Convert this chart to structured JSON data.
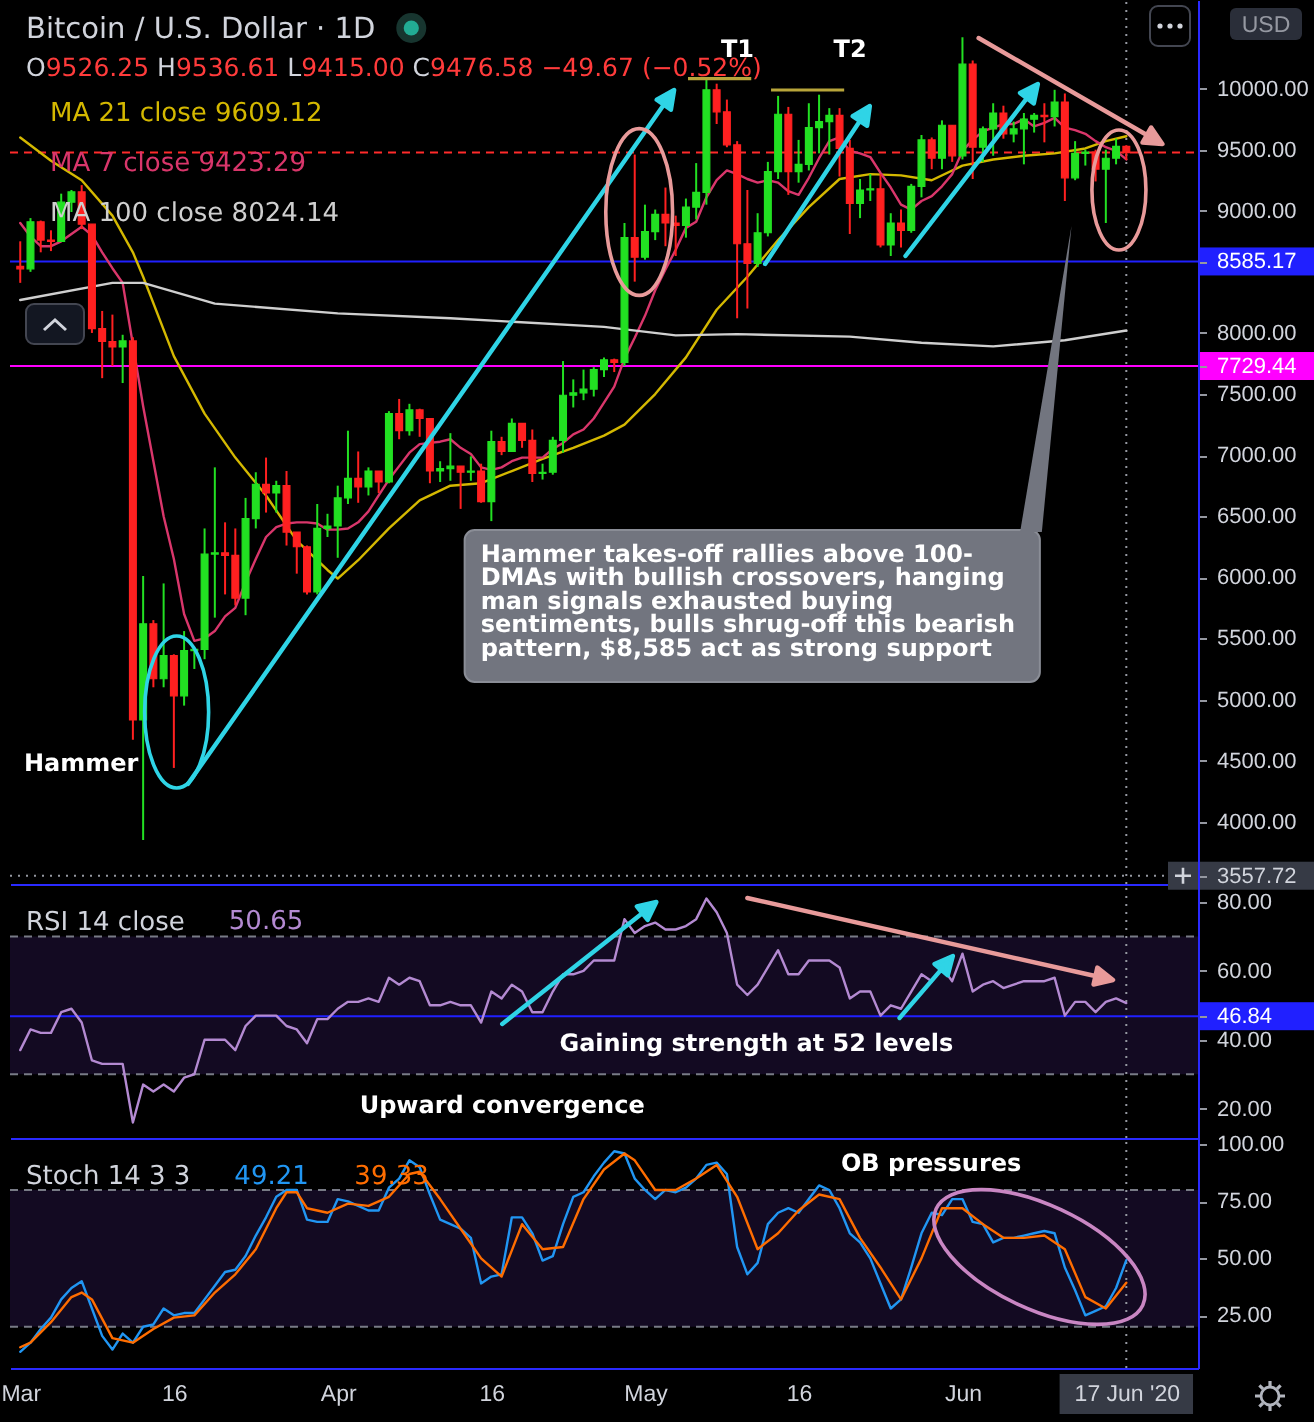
{
  "chart_data": [
    {
      "type": "candlestick",
      "title": "Bitcoin / U.S. Dollar · 1D",
      "subtitle": "O9526.25 H9536.61 L9415.00 C9476.58 −49.67 (−0.52%)",
      "ylabel": "USD",
      "x": [
        "2020-03-01",
        "2020-03-02",
        "2020-03-03",
        "2020-03-04",
        "2020-03-05",
        "2020-03-06",
        "2020-03-07",
        "2020-03-08",
        "2020-03-09",
        "2020-03-10",
        "2020-03-11",
        "2020-03-12",
        "2020-03-13",
        "2020-03-14",
        "2020-03-15",
        "2020-03-16",
        "2020-03-17",
        "2020-03-18",
        "2020-03-19",
        "2020-03-20",
        "2020-03-21",
        "2020-03-22",
        "2020-03-23",
        "2020-03-24",
        "2020-03-25",
        "2020-03-26",
        "2020-03-27",
        "2020-03-28",
        "2020-03-29",
        "2020-03-30",
        "2020-03-31",
        "2020-04-01",
        "2020-04-02",
        "2020-04-03",
        "2020-04-04",
        "2020-04-05",
        "2020-04-06",
        "2020-04-07",
        "2020-04-08",
        "2020-04-09",
        "2020-04-10",
        "2020-04-11",
        "2020-04-12",
        "2020-04-13",
        "2020-04-14",
        "2020-04-15",
        "2020-04-16",
        "2020-04-17",
        "2020-04-18",
        "2020-04-19",
        "2020-04-20",
        "2020-04-21",
        "2020-04-22",
        "2020-04-23",
        "2020-04-24",
        "2020-04-25",
        "2020-04-26",
        "2020-04-27",
        "2020-04-28",
        "2020-04-29",
        "2020-04-30",
        "2020-05-01",
        "2020-05-02",
        "2020-05-03",
        "2020-05-04",
        "2020-05-05",
        "2020-05-06",
        "2020-05-07",
        "2020-05-08",
        "2020-05-09",
        "2020-05-10",
        "2020-05-11",
        "2020-05-12",
        "2020-05-13",
        "2020-05-14",
        "2020-05-15",
        "2020-05-16",
        "2020-05-17",
        "2020-05-18",
        "2020-05-19",
        "2020-05-20",
        "2020-05-21",
        "2020-05-22",
        "2020-05-23",
        "2020-05-24",
        "2020-05-25",
        "2020-05-26",
        "2020-05-27",
        "2020-05-28",
        "2020-05-29",
        "2020-05-30",
        "2020-05-31",
        "2020-06-01",
        "2020-06-02",
        "2020-06-03",
        "2020-06-04",
        "2020-06-05",
        "2020-06-06",
        "2020-06-07",
        "2020-06-08",
        "2020-06-09",
        "2020-06-10",
        "2020-06-11",
        "2020-06-12",
        "2020-06-13",
        "2020-06-14",
        "2020-06-15",
        "2020-06-16",
        "2020-06-17"
      ],
      "ohlc": [
        [
          8545,
          8750,
          8410,
          8525
        ],
        [
          8525,
          8940,
          8500,
          8910
        ],
        [
          8910,
          8920,
          8660,
          8760
        ],
        [
          8760,
          8840,
          8670,
          8750
        ],
        [
          8750,
          9140,
          8750,
          9070
        ],
        [
          9070,
          9170,
          8990,
          9155
        ],
        [
          9155,
          9210,
          8850,
          8890
        ],
        [
          8890,
          8890,
          8000,
          8035
        ],
        [
          8035,
          8180,
          7630,
          7930
        ],
        [
          7930,
          8150,
          7730,
          7885
        ],
        [
          7885,
          7985,
          7590,
          7935
        ],
        [
          7935,
          7965,
          4670,
          4833
        ],
        [
          4833,
          6011,
          3851,
          5620
        ],
        [
          5620,
          5650,
          5100,
          5170
        ],
        [
          5170,
          5950,
          5100,
          5360
        ],
        [
          5360,
          5370,
          4440,
          5030
        ],
        [
          5030,
          5560,
          4950,
          5400
        ],
        [
          5400,
          5420,
          5250,
          5410
        ],
        [
          5410,
          6400,
          5330,
          6190
        ],
        [
          6190,
          6900,
          5670,
          6200
        ],
        [
          6200,
          6450,
          5860,
          6180
        ],
        [
          6180,
          6400,
          5770,
          5830
        ],
        [
          5830,
          6650,
          5690,
          6480
        ],
        [
          6480,
          6860,
          6400,
          6760
        ],
        [
          6760,
          6980,
          6530,
          6690
        ],
        [
          6690,
          6790,
          6530,
          6750
        ],
        [
          6750,
          6870,
          6260,
          6370
        ],
        [
          6370,
          6370,
          6030,
          6250
        ],
        [
          6250,
          6260,
          5860,
          5880
        ],
        [
          5880,
          6600,
          5860,
          6400
        ],
        [
          6400,
          6520,
          6330,
          6420
        ],
        [
          6420,
          6750,
          6160,
          6650
        ],
        [
          6650,
          7200,
          6600,
          6810
        ],
        [
          6810,
          7030,
          6610,
          6740
        ],
        [
          6740,
          6900,
          6670,
          6870
        ],
        [
          6870,
          6870,
          6690,
          6780
        ],
        [
          6780,
          7360,
          6770,
          7340
        ],
        [
          7340,
          7460,
          7130,
          7200
        ],
        [
          7200,
          7420,
          7160,
          7370
        ],
        [
          7370,
          7380,
          7150,
          7300
        ],
        [
          7300,
          7300,
          6770,
          6870
        ],
        [
          6870,
          6950,
          6780,
          6890
        ],
        [
          6890,
          7180,
          6790,
          6910
        ],
        [
          6910,
          6910,
          6560,
          6860
        ],
        [
          6860,
          6990,
          6790,
          6870
        ],
        [
          6870,
          6930,
          6610,
          6620
        ],
        [
          6620,
          7200,
          6460,
          7110
        ],
        [
          7110,
          7150,
          7000,
          7030
        ],
        [
          7030,
          7300,
          7030,
          7260
        ],
        [
          7260,
          7260,
          7060,
          7120
        ],
        [
          7120,
          7210,
          6780,
          6850
        ],
        [
          6850,
          6930,
          6800,
          6860
        ],
        [
          6860,
          7150,
          6840,
          7120
        ],
        [
          7120,
          7770,
          7020,
          7490
        ],
        [
          7490,
          7620,
          7390,
          7510
        ],
        [
          7510,
          7700,
          7450,
          7540
        ],
        [
          7540,
          7720,
          7480,
          7700
        ],
        [
          7700,
          7800,
          7640,
          7780
        ],
        [
          7780,
          7790,
          7680,
          7760
        ],
        [
          7760,
          8900,
          7730,
          8780
        ],
        [
          8780,
          9460,
          8420,
          8620
        ],
        [
          8620,
          9050,
          8600,
          8830
        ],
        [
          8830,
          9010,
          8760,
          8970
        ],
        [
          8970,
          9190,
          8710,
          8900
        ],
        [
          8900,
          8960,
          8630,
          8880
        ],
        [
          8880,
          9100,
          8780,
          9030
        ],
        [
          9030,
          9390,
          8930,
          9150
        ],
        [
          9150,
          10070,
          9050,
          9990
        ],
        [
          9990,
          10040,
          9710,
          9810
        ],
        [
          9810,
          9910,
          9520,
          9540
        ],
        [
          9540,
          9570,
          8120,
          8730
        ],
        [
          8730,
          9170,
          8200,
          8570
        ],
        [
          8570,
          8980,
          8540,
          8820
        ],
        [
          8820,
          9400,
          8790,
          9320
        ],
        [
          9320,
          9940,
          9260,
          9790
        ],
        [
          9790,
          9850,
          9130,
          9320
        ],
        [
          9320,
          9580,
          9230,
          9380
        ],
        [
          9380,
          9880,
          9330,
          9680
        ],
        [
          9680,
          9950,
          9470,
          9730
        ],
        [
          9730,
          9840,
          9460,
          9780
        ],
        [
          9780,
          9840,
          9280,
          9510
        ],
        [
          9510,
          9580,
          8810,
          9060
        ],
        [
          9060,
          9260,
          8940,
          9170
        ],
        [
          9170,
          9300,
          9080,
          9180
        ],
        [
          9180,
          9300,
          8700,
          8720
        ],
        [
          8720,
          8980,
          8630,
          8900
        ],
        [
          8900,
          9010,
          8700,
          8840
        ],
        [
          8840,
          9220,
          8820,
          9200
        ],
        [
          9200,
          9620,
          9110,
          9580
        ],
        [
          9580,
          9600,
          9340,
          9430
        ],
        [
          9430,
          9740,
          9340,
          9700
        ],
        [
          9700,
          9700,
          9400,
          9450
        ],
        [
          9450,
          10420,
          9420,
          10200
        ],
        [
          10200,
          10230,
          9260,
          9520
        ],
        [
          9520,
          9690,
          9400,
          9670
        ],
        [
          9670,
          9880,
          9450,
          9800
        ],
        [
          9800,
          9860,
          9590,
          9630
        ],
        [
          9630,
          9730,
          9560,
          9670
        ],
        [
          9670,
          9800,
          9380,
          9750
        ],
        [
          9750,
          9800,
          9640,
          9780
        ],
        [
          9780,
          9880,
          9560,
          9770
        ],
        [
          9770,
          9990,
          9690,
          9890
        ],
        [
          9890,
          9960,
          9080,
          9270
        ],
        [
          9270,
          9570,
          9250,
          9470
        ],
        [
          9470,
          9500,
          9370,
          9480
        ],
        [
          9480,
          9500,
          9240,
          9340
        ],
        [
          9340,
          9500,
          8900,
          9430
        ],
        [
          9430,
          9590,
          9380,
          9526.25
        ],
        [
          9526.25,
          9536.61,
          9415.0,
          9476.58
        ]
      ],
      "colors": [
        "#ff2020",
        "#22e022",
        "#ff2020",
        "#ff2020",
        "#22e022",
        "#22e022",
        "#ff2020",
        "#ff2020",
        "#ff2020",
        "#ff2020",
        "#22e022",
        "#ff2020",
        "#22e022",
        "#ff2020",
        "#22e022",
        "#ff2020",
        "#22e022",
        "#22e022",
        "#22e022",
        "#22e022",
        "#ff2020",
        "#ff2020",
        "#22e022",
        "#22e022",
        "#ff2020",
        "#22e022",
        "#ff2020",
        "#ff2020",
        "#ff2020",
        "#22e022",
        "#22e022",
        "#22e022",
        "#22e022",
        "#ff2020",
        "#22e022",
        "#ff2020",
        "#22e022",
        "#ff2020",
        "#22e022",
        "#ff2020",
        "#ff2020",
        "#22e022",
        "#22e022",
        "#ff2020",
        "#22e022",
        "#ff2020",
        "#22e022",
        "#ff2020",
        "#22e022",
        "#ff2020",
        "#ff2020",
        "#22e022",
        "#22e022",
        "#22e022",
        "#22e022",
        "#22e022",
        "#22e022",
        "#22e022",
        "#ff2020",
        "#22e022",
        "#ff2020",
        "#22e022",
        "#22e022",
        "#ff2020",
        "#ff2020",
        "#22e022",
        "#22e022",
        "#22e022",
        "#ff2020",
        "#ff2020",
        "#ff2020",
        "#ff2020",
        "#22e022",
        "#22e022",
        "#22e022",
        "#ff2020",
        "#22e022",
        "#22e022",
        "#22e022",
        "#22e022",
        "#ff2020",
        "#ff2020",
        "#22e022",
        "#22e022",
        "#ff2020",
        "#22e022",
        "#ff2020",
        "#22e022",
        "#22e022",
        "#ff2020",
        "#22e022",
        "#ff2020",
        "#22e022",
        "#ff2020",
        "#22e022",
        "#22e022",
        "#ff2020",
        "#22e022",
        "#22e022",
        "#22e022",
        "#ff2020",
        "#22e022",
        "#ff2020",
        "#22e022",
        "#22e022",
        "#ff2020",
        "#22e022",
        "#22e022",
        "#ff2020"
      ],
      "series": [
        {
          "type": "line",
          "name": "MA 21 close 9609.12",
          "color": "#d4b800",
          "x": [
            "2020-03-01",
            "2020-03-04",
            "2020-03-07",
            "2020-03-10",
            "2020-03-12",
            "2020-03-13",
            "2020-03-16",
            "2020-03-19",
            "2020-03-22",
            "2020-03-25",
            "2020-03-28",
            "2020-03-31",
            "2020-04-01",
            "2020-04-03",
            "2020-04-06",
            "2020-04-09",
            "2020-04-12",
            "2020-04-15",
            "2020-04-18",
            "2020-04-21",
            "2020-04-24",
            "2020-04-27",
            "2020-04-29",
            "2020-05-02",
            "2020-05-05",
            "2020-05-08",
            "2020-05-11",
            "2020-05-14",
            "2020-05-17",
            "2020-05-20",
            "2020-05-23",
            "2020-05-26",
            "2020-05-29",
            "2020-06-01",
            "2020-06-04",
            "2020-06-07",
            "2020-06-10",
            "2020-06-13",
            "2020-06-15",
            "2020-06-17"
          ],
          "values": [
            9600,
            9410,
            9250,
            8960,
            8660,
            8460,
            7810,
            7340,
            6980,
            6670,
            6300,
            6060,
            5990,
            6140,
            6400,
            6630,
            6750,
            6770,
            6870,
            6970,
            7060,
            7160,
            7250,
            7500,
            7800,
            8190,
            8460,
            8760,
            9030,
            9260,
            9300,
            9290,
            9250,
            9370,
            9420,
            9450,
            9470,
            9510,
            9570,
            9610
          ]
        },
        {
          "type": "line",
          "name": "MA 7 close 9423.29",
          "color": "#d9366b",
          "values": [
            8900,
            8790,
            8710,
            8710,
            8750,
            8810,
            8870,
            8800,
            8660,
            8530,
            8410,
            null,
            7400,
            6950,
            6500,
            6150,
            5700,
            5480,
            5500,
            5560,
            5680,
            5750,
            5960,
            6150,
            6330,
            6410,
            6440,
            6450,
            6450,
            6440,
            6390,
            6390,
            6400,
            6450,
            6540,
            6670,
            6800,
            6910,
            7020,
            7090,
            7100,
            7110,
            7130,
            7060,
            7010,
            6900,
            6880,
            6900,
            6950,
            6980,
            6980,
            6980,
            7050,
            7100,
            7170,
            7210,
            7300,
            7430,
            7560,
            7790,
            7960,
            8140,
            8350,
            8520,
            8680,
            8860,
            8910,
            9110,
            9250,
            9330,
            9300,
            9260,
            9230,
            9250,
            9230,
            9160,
            9130,
            9270,
            9430,
            9570,
            9600,
            9490,
            9470,
            9440,
            9310,
            9190,
            9050,
            9010,
            9080,
            9120,
            9200,
            9300,
            9490,
            9580,
            9650,
            9680,
            9710,
            9710,
            9750,
            9690,
            9720,
            9760,
            9680,
            9660,
            9630,
            9570,
            9520,
            9490,
            9420
          ]
        },
        {
          "type": "line",
          "name": "MA 100 close 8024.14",
          "color": "#cfcfcf",
          "x": [
            "2020-03-01",
            "2020-03-10",
            "2020-03-13",
            "2020-03-20",
            "2020-04-01",
            "2020-04-12",
            "2020-04-27",
            "2020-05-04",
            "2020-05-10",
            "2020-05-21",
            "2020-05-28",
            "2020-06-04",
            "2020-06-11",
            "2020-06-17"
          ],
          "values": [
            8270,
            8410,
            8410,
            8240,
            8160,
            8120,
            8050,
            7980,
            7990,
            7970,
            7920,
            7890,
            7940,
            8020
          ]
        }
      ],
      "xlim": [
        "2020-02-29",
        "2020-06-24"
      ],
      "ylim": [
        3490,
        10725
      ],
      "yticks": [
        3557.72,
        {
          "value": 4000,
          "label": "4000.00"
        },
        {
          "value": 4500,
          "label": "4500.00"
        },
        {
          "value": 5000,
          "label": "5000.00"
        },
        {
          "value": 5500,
          "label": "5500.00"
        },
        {
          "value": 6000,
          "label": "6000.00"
        },
        {
          "value": 6500,
          "label": "6500.00"
        },
        {
          "value": 7000,
          "label": "7000.00"
        },
        {
          "value": 7500,
          "label": "7500.00"
        },
        7729.44,
        {
          "value": 8000,
          "label": "8000.00"
        },
        8585.17,
        {
          "value": 9000,
          "label": "9000.00"
        },
        {
          "value": 9500,
          "label": "9500.00"
        },
        {
          "value": 10000,
          "label": "10000.00"
        }
      ],
      "ref_lines": [
        {
          "axis": "y",
          "value": 8585.17,
          "color": "#2020ff"
        },
        {
          "axis": "y",
          "value": 7729.44,
          "color": "#ff00ff"
        },
        {
          "axis": "y",
          "value": 9476.58,
          "color": "#ff2b2b",
          "line_style": "dashed"
        },
        {
          "axis": "y",
          "value": 3557.72,
          "color": "#9598a1",
          "line_style": "dotted"
        },
        {
          "axis": "x",
          "value": "2020-06-17",
          "color": "#9598a1",
          "line_style": "dotted"
        }
      ],
      "annotations": [
        "Hammer takes-off rallies above 100-DMAs with bullish crossovers, hanging man signals exhausted buying sentiments, bulls shrug-off this bearish pattern, $8,585 act as strong support",
        "T1",
        "T2",
        "Hammer"
      ],
      "legend": "top left",
      "tick_labels": "y"
    },
    {
      "type": "line",
      "title": "RSI 14 close",
      "x": [
        "2020-03-01",
        "2020-03-02",
        "2020-03-03",
        "2020-03-04",
        "2020-03-05",
        "2020-03-06",
        "2020-03-07",
        "2020-03-08",
        "2020-03-09",
        "2020-03-10",
        "2020-03-11",
        "2020-03-12",
        "2020-03-13",
        "2020-03-14",
        "2020-03-15",
        "2020-03-16",
        "2020-03-17",
        "2020-03-18",
        "2020-03-19",
        "2020-03-20",
        "2020-03-21",
        "2020-03-22",
        "2020-03-23",
        "2020-03-24",
        "2020-03-25",
        "2020-03-26",
        "2020-03-27",
        "2020-03-28",
        "2020-03-29",
        "2020-03-30",
        "2020-03-31",
        "2020-04-01",
        "2020-04-02",
        "2020-04-03",
        "2020-04-04",
        "2020-04-05",
        "2020-04-06",
        "2020-04-07",
        "2020-04-08",
        "2020-04-09",
        "2020-04-10",
        "2020-04-11",
        "2020-04-12",
        "2020-04-13",
        "2020-04-14",
        "2020-04-15",
        "2020-04-16",
        "2020-04-17",
        "2020-04-18",
        "2020-04-19",
        "2020-04-20",
        "2020-04-21",
        "2020-04-22",
        "2020-04-23",
        "2020-04-24",
        "2020-04-25",
        "2020-04-26",
        "2020-04-27",
        "2020-04-28",
        "2020-04-29",
        "2020-04-30",
        "2020-05-01",
        "2020-05-02",
        "2020-05-03",
        "2020-05-04",
        "2020-05-05",
        "2020-05-06",
        "2020-05-07",
        "2020-05-08",
        "2020-05-09",
        "2020-05-10",
        "2020-05-11",
        "2020-05-12",
        "2020-05-13",
        "2020-05-14",
        "2020-05-15",
        "2020-05-16",
        "2020-05-17",
        "2020-05-18",
        "2020-05-19",
        "2020-05-20",
        "2020-05-21",
        "2020-05-22",
        "2020-05-23",
        "2020-05-24",
        "2020-05-25",
        "2020-05-26",
        "2020-05-27",
        "2020-05-28",
        "2020-05-29",
        "2020-05-30",
        "2020-05-31",
        "2020-06-01",
        "2020-06-02",
        "2020-06-03",
        "2020-06-04",
        "2020-06-05",
        "2020-06-06",
        "2020-06-07",
        "2020-06-08",
        "2020-06-09",
        "2020-06-10",
        "2020-06-11",
        "2020-06-12",
        "2020-06-13",
        "2020-06-14",
        "2020-06-15",
        "2020-06-16",
        "2020-06-17"
      ],
      "series": [
        {
          "name": "50.65",
          "color": "#b48ad2",
          "values": [
            37,
            43,
            42,
            42,
            48,
            49,
            45,
            34,
            33,
            33,
            33,
            16,
            27,
            25,
            27,
            25,
            29,
            30,
            40,
            40,
            40,
            37,
            44,
            47,
            47,
            47,
            44,
            43,
            39,
            46,
            46,
            49,
            51,
            51,
            52,
            51,
            58,
            56,
            58,
            57,
            50,
            50,
            51,
            50,
            50,
            45,
            54,
            52,
            56,
            54,
            48,
            48,
            54,
            59,
            59,
            60,
            63,
            63,
            63,
            75,
            71,
            73,
            74,
            72,
            72,
            73,
            75,
            81,
            77,
            71,
            56,
            53,
            56,
            61,
            66,
            59,
            59,
            63,
            63,
            63,
            61,
            52,
            54,
            54,
            47,
            50,
            49,
            54,
            59,
            57,
            61,
            57,
            65,
            54,
            56,
            57,
            55,
            56,
            57,
            57,
            57,
            58,
            47,
            51,
            51,
            48,
            51,
            52,
            50.65
          ]
        }
      ],
      "xlim": [
        "2020-02-29",
        "2020-06-24"
      ],
      "ylim": [
        11.5,
        85.2
      ],
      "yticks": [
        {
          "value": 20,
          "label": "20.00"
        },
        {
          "value": 40,
          "label": "40.00"
        },
        46.84,
        {
          "value": 60,
          "label": "60.00"
        },
        {
          "value": 80,
          "label": "80.00"
        }
      ],
      "bands": [
        {
          "axis": "y",
          "from": 30,
          "to": 70,
          "color": "#130a22"
        }
      ],
      "ref_lines": [
        {
          "axis": "y",
          "value": 70,
          "color": "#787b86",
          "line_style": "dashed"
        },
        {
          "axis": "y",
          "value": 30,
          "color": "#787b86",
          "line_style": "dashed"
        },
        {
          "axis": "y",
          "value": 46.84,
          "color": "#2020ff"
        },
        {
          "axis": "x",
          "value": "2020-06-17",
          "color": "#9598a1",
          "line_style": "dotted"
        }
      ],
      "annotations": [
        "Gaining strength at 52 levels",
        "Upward convergence"
      ],
      "legend": "top left",
      "tick_labels": "y"
    },
    {
      "type": "line",
      "title": "Stoch 14 3 3",
      "x": [
        "2020-03-01",
        "2020-03-02",
        "2020-03-03",
        "2020-03-04",
        "2020-03-05",
        "2020-03-06",
        "2020-03-07",
        "2020-03-08",
        "2020-03-09",
        "2020-03-10",
        "2020-03-11",
        "2020-03-12",
        "2020-03-13",
        "2020-03-14",
        "2020-03-15",
        "2020-03-16",
        "2020-03-17",
        "2020-03-18",
        "2020-03-19",
        "2020-03-20",
        "2020-03-21",
        "2020-03-22",
        "2020-03-23",
        "2020-03-24",
        "2020-03-25",
        "2020-03-26",
        "2020-03-27",
        "2020-03-28",
        "2020-03-29",
        "2020-03-30",
        "2020-03-31",
        "2020-04-01",
        "2020-04-02",
        "2020-04-03",
        "2020-04-04",
        "2020-04-05",
        "2020-04-06",
        "2020-04-07",
        "2020-04-08",
        "2020-04-09",
        "2020-04-10",
        "2020-04-11",
        "2020-04-12",
        "2020-04-13",
        "2020-04-14",
        "2020-04-15",
        "2020-04-16",
        "2020-04-17",
        "2020-04-18",
        "2020-04-19",
        "2020-04-20",
        "2020-04-21",
        "2020-04-22",
        "2020-04-23",
        "2020-04-24",
        "2020-04-25",
        "2020-04-26",
        "2020-04-27",
        "2020-04-28",
        "2020-04-29",
        "2020-04-30",
        "2020-05-01",
        "2020-05-02",
        "2020-05-03",
        "2020-05-04",
        "2020-05-05",
        "2020-05-06",
        "2020-05-07",
        "2020-05-08",
        "2020-05-09",
        "2020-05-10",
        "2020-05-11",
        "2020-05-12",
        "2020-05-13",
        "2020-05-14",
        "2020-05-15",
        "2020-05-16",
        "2020-05-17",
        "2020-05-18",
        "2020-05-19",
        "2020-05-20",
        "2020-05-21",
        "2020-05-22",
        "2020-05-23",
        "2020-05-24",
        "2020-05-25",
        "2020-05-26",
        "2020-05-27",
        "2020-05-28",
        "2020-05-29",
        "2020-05-30",
        "2020-05-31",
        "2020-06-01",
        "2020-06-02",
        "2020-06-03",
        "2020-06-04",
        "2020-06-05",
        "2020-06-06",
        "2020-06-07",
        "2020-06-08",
        "2020-06-09",
        "2020-06-10",
        "2020-06-11",
        "2020-06-12",
        "2020-06-13",
        "2020-06-14",
        "2020-06-15",
        "2020-06-16",
        "2020-06-17"
      ],
      "series": [
        {
          "name": "49.21",
          "color": "#2196f3",
          "values": [
            9,
            13,
            19,
            24,
            32,
            37,
            40,
            28,
            16,
            10,
            17,
            13,
            20,
            21,
            28,
            25,
            26,
            26,
            32,
            38,
            44,
            45,
            51,
            60,
            68,
            77,
            80,
            80,
            67,
            66,
            66,
            76,
            75,
            73,
            71,
            71,
            81,
            85,
            93,
            90,
            78,
            67,
            65,
            63,
            59,
            39,
            42,
            43,
            68,
            68,
            61,
            49,
            51,
            65,
            77,
            79,
            86,
            92,
            97,
            96,
            85,
            80,
            76,
            80,
            79,
            81,
            85,
            91,
            92,
            87,
            55,
            43,
            48,
            65,
            70,
            72,
            70,
            76,
            82,
            80,
            72,
            61,
            57,
            50,
            39,
            28,
            32,
            46,
            61,
            70,
            69,
            76,
            76,
            66,
            65,
            57,
            59,
            59,
            60,
            61,
            62,
            61,
            46,
            36,
            25,
            27,
            29,
            37,
            49.21
          ]
        },
        {
          "name": "39.33",
          "color": "#ff6d00",
          "x": [
            "2020-03-01",
            "2020-03-02",
            "2020-03-04",
            "2020-03-06",
            "2020-03-07",
            "2020-03-08",
            "2020-03-10",
            "2020-03-12",
            "2020-03-14",
            "2020-03-16",
            "2020-03-18",
            "2020-03-20",
            "2020-03-22",
            "2020-03-24",
            "2020-03-26",
            "2020-03-27",
            "2020-03-28",
            "2020-03-29",
            "2020-03-31",
            "2020-04-02",
            "2020-04-04",
            "2020-04-06",
            "2020-04-08",
            "2020-04-09",
            "2020-04-11",
            "2020-04-13",
            "2020-04-15",
            "2020-04-17",
            "2020-04-19",
            "2020-04-21",
            "2020-04-23",
            "2020-04-25",
            "2020-04-27",
            "2020-04-29",
            "2020-04-30",
            "2020-05-02",
            "2020-05-04",
            "2020-05-06",
            "2020-05-08",
            "2020-05-10",
            "2020-05-12",
            "2020-05-14",
            "2020-05-16",
            "2020-05-18",
            "2020-05-20",
            "2020-05-22",
            "2020-05-24",
            "2020-05-26",
            "2020-05-28",
            "2020-05-30",
            "2020-06-01",
            "2020-06-03",
            "2020-06-05",
            "2020-06-07",
            "2020-06-09",
            "2020-06-11",
            "2020-06-13",
            "2020-06-15",
            "2020-06-17"
          ],
          "values": [
            11,
            13,
            22,
            33,
            35,
            32,
            15,
            13,
            19,
            24,
            25,
            35,
            43,
            54,
            72,
            79,
            79,
            72,
            70,
            74,
            73,
            77,
            87,
            88,
            76,
            63,
            50,
            42,
            65,
            54,
            55,
            76,
            89,
            96,
            93,
            80,
            80,
            85,
            91,
            77,
            54,
            61,
            71,
            78,
            76,
            59,
            46,
            32,
            50,
            72,
            72,
            65,
            59,
            59,
            60,
            54,
            33,
            28,
            39.33
          ]
        }
      ],
      "xlim": [
        "2020-02-29",
        "2020-06-24"
      ],
      "ylim": [
        1.9,
        102.8
      ],
      "xticks": [
        {
          "value": "2020-03-01",
          "label": "Mar"
        },
        {
          "value": "2020-03-16",
          "label": "16"
        },
        {
          "value": "2020-04-01",
          "label": "Apr"
        },
        {
          "value": "2020-04-16",
          "label": "16"
        },
        {
          "value": "2020-05-01",
          "label": "May"
        },
        {
          "value": "2020-05-16",
          "label": "16"
        },
        {
          "value": "2020-06-01",
          "label": "Jun"
        },
        {
          "value": "2020-06-17",
          "label": "17 Jun '20"
        }
      ],
      "yticks": [
        {
          "value": 25,
          "label": "25.00"
        },
        {
          "value": 50,
          "label": "50.00"
        },
        {
          "value": 75,
          "label": "75.00"
        },
        {
          "value": 100,
          "label": "100.00"
        }
      ],
      "bands": [
        {
          "axis": "y",
          "from": 20,
          "to": 80,
          "color": "#130a22"
        }
      ],
      "ref_lines": [
        {
          "axis": "y",
          "value": 80,
          "color": "#787b86",
          "line_style": "dashed"
        },
        {
          "axis": "y",
          "value": 20,
          "color": "#787b86",
          "line_style": "dashed"
        },
        {
          "axis": "x",
          "value": "2020-06-17",
          "color": "#9598a1",
          "line_style": "dotted"
        }
      ],
      "annotations": [
        "OB pressures"
      ],
      "legend": "top left"
    }
  ]
}
